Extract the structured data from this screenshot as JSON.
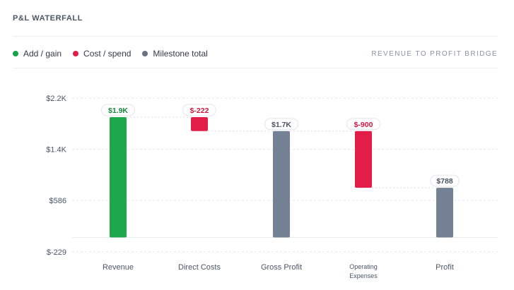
{
  "header": {
    "title": "P&L WATERFALL",
    "subtitle": "REVENUE TO PROFIT BRIDGE"
  },
  "legend": [
    {
      "label": "Add / gain",
      "color": "#16a34a"
    },
    {
      "label": "Cost / spend",
      "color": "#e11d48"
    },
    {
      "label": "Milestone total",
      "color": "#6b7280"
    }
  ],
  "colors": {
    "add": "#1fa84b",
    "cost": "#e11d48",
    "total": "#748094"
  },
  "chart_data": {
    "type": "bar",
    "subtype": "waterfall",
    "title": "P&L WATERFALL",
    "subtitle": "REVENUE TO PROFIT BRIDGE",
    "categories": [
      "Revenue",
      "Direct Costs",
      "Gross Profit",
      "Operating Expenses",
      "Profit"
    ],
    "category_labels": [
      [
        "Revenue"
      ],
      [
        "Direct Costs"
      ],
      [
        "Gross Profit"
      ],
      [
        "Operating",
        "Expenses"
      ],
      [
        "Profit"
      ]
    ],
    "steps": [
      {
        "category": "Revenue",
        "kind": "add",
        "value": 1910,
        "label": "$1.9K"
      },
      {
        "category": "Direct Costs",
        "kind": "cost",
        "value": -222,
        "label": "$-222"
      },
      {
        "category": "Gross Profit",
        "kind": "total",
        "value": 1688,
        "label": "$1.7K"
      },
      {
        "category": "Operating Expenses",
        "kind": "cost",
        "value": -900,
        "label": "$-900"
      },
      {
        "category": "Profit",
        "kind": "total",
        "value": 788,
        "label": "$788"
      }
    ],
    "y_ticks": [
      {
        "value": 2212,
        "label": "$2.2K"
      },
      {
        "value": 1399,
        "label": "$1.4K"
      },
      {
        "value": 586,
        "label": "$586"
      },
      {
        "value": -229,
        "label": "$-229"
      }
    ],
    "ylim": [
      -229,
      2212
    ],
    "grid": true,
    "legend_position": "top-left"
  }
}
